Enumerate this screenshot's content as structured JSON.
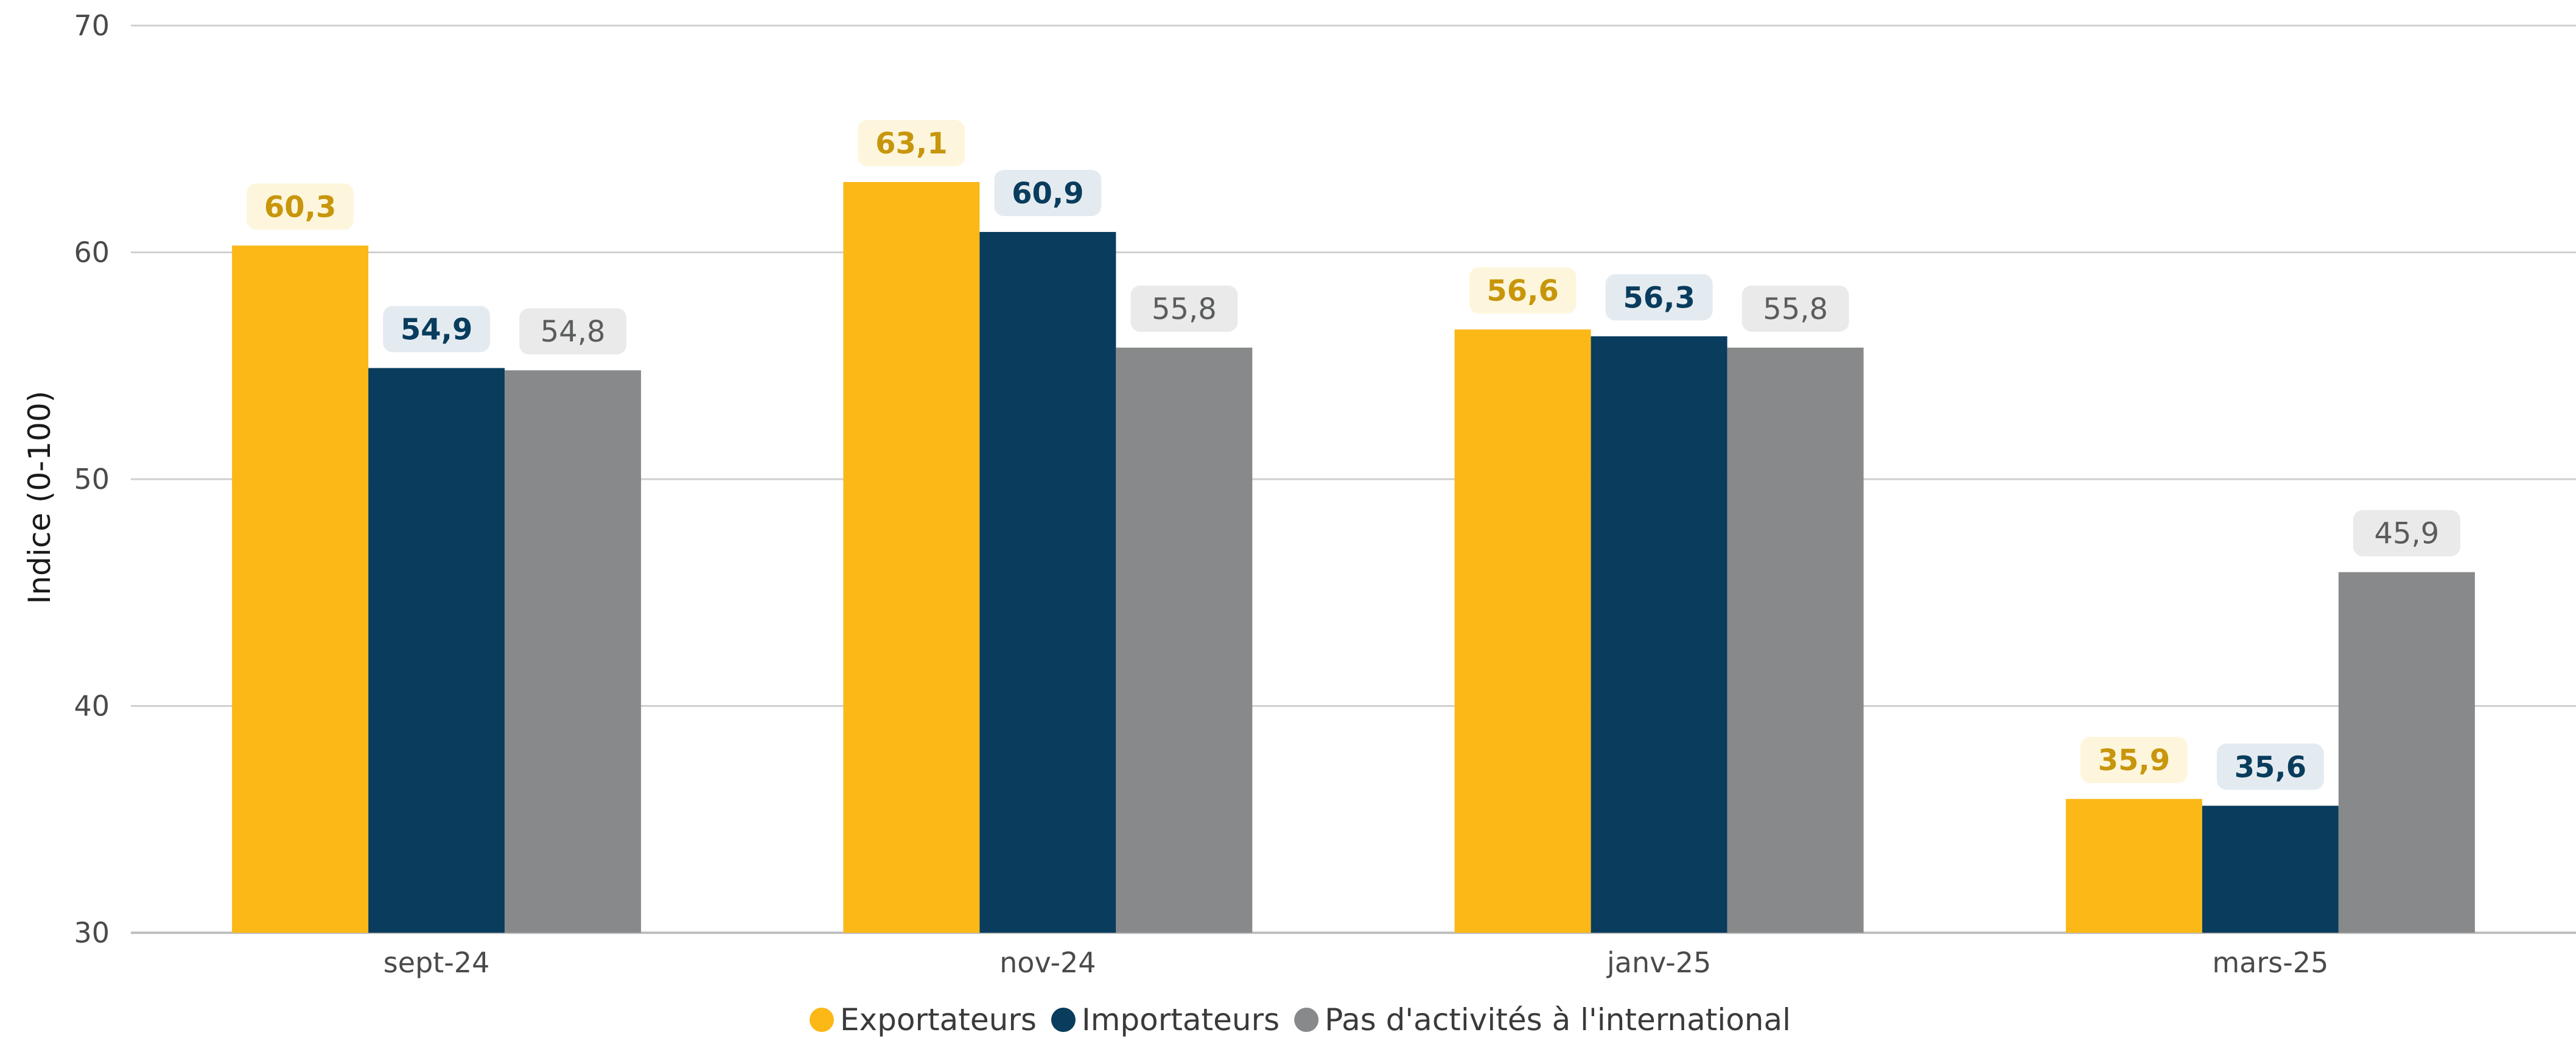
{
  "chart_data": {
    "type": "bar",
    "title": "",
    "xlabel": "",
    "ylabel": "Indice (0-100)",
    "ylim": [
      30,
      70
    ],
    "yticks": [
      "30",
      "40",
      "50",
      "60",
      "70"
    ],
    "categories": [
      "sept-24",
      "nov-24",
      "janv-25",
      "mars-25"
    ],
    "grid": true,
    "legend_position": "bottom",
    "series": [
      {
        "name": "Exportateurs",
        "color": "#FBB817",
        "label_color": "#C8960C",
        "label_bg": "#FDF6DC",
        "label_bold": true,
        "values": [
          60.3,
          63.1,
          56.6,
          35.9
        ],
        "labels": [
          "60,3",
          "63,1",
          "56,6",
          "35,9"
        ]
      },
      {
        "name": "Importateurs",
        "color": "#093C5D",
        "label_color": "#093C5D",
        "label_bg": "#E4EBF0",
        "label_bold": true,
        "values": [
          54.9,
          60.9,
          56.3,
          35.6
        ],
        "labels": [
          "54,9",
          "60,9",
          "56,3",
          "35,6"
        ]
      },
      {
        "name": "Pas d'activités à l'international",
        "color": "#87898A",
        "label_color": "#5A5C5D",
        "label_bg": "#EAEAEA",
        "label_bold": false,
        "values": [
          54.8,
          55.8,
          55.8,
          45.9
        ],
        "labels": [
          "54,8",
          "55,8",
          "55,8",
          "45,9"
        ]
      }
    ]
  }
}
